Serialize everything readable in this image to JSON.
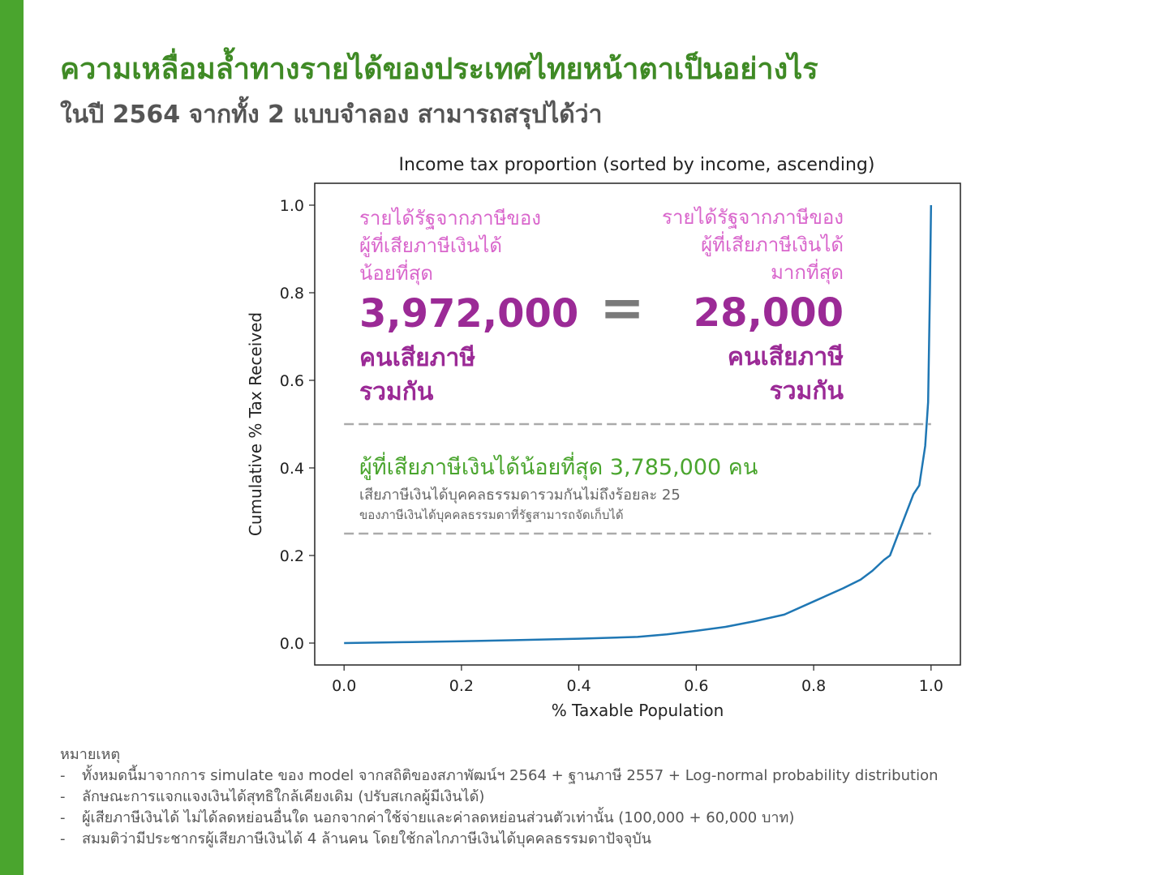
{
  "header": {
    "title": "ความเหลื่อมล้ำทางรายได้ของประเทศไทยหน้าตาเป็นอย่างไร",
    "subtitle": "ในปี 2564 จากทั้ง 2 แบบจำลอง สามารถสรุปได้ว่า"
  },
  "colors": {
    "accent_green": "#4aa52e",
    "title_green": "#3f8a25",
    "purple_label": "#d966cc",
    "purple_value": "#9b2a96",
    "line_blue": "#1f77b4",
    "ref_line_gray": "#aaaaaa"
  },
  "chart_data": {
    "type": "line",
    "title": "Income tax proportion (sorted by income, ascending)",
    "xlabel": "% Taxable Population",
    "ylabel": "Cumulative % Tax Received",
    "xlim": [
      -0.05,
      1.05
    ],
    "ylim": [
      -0.05,
      1.05
    ],
    "xticks": [
      "0.0",
      "0.2",
      "0.4",
      "0.6",
      "0.8",
      "1.0"
    ],
    "yticks": [
      "0.0",
      "0.2",
      "0.4",
      "0.6",
      "0.8",
      "1.0"
    ],
    "grid": false,
    "legend": "none",
    "series": [
      {
        "x": [
          0.0,
          0.1,
          0.2,
          0.3,
          0.4,
          0.5,
          0.55,
          0.6,
          0.65,
          0.7,
          0.75,
          0.8,
          0.85,
          0.88,
          0.9,
          0.92,
          0.93,
          0.95,
          0.97,
          0.98,
          0.99,
          0.995,
          0.998,
          1.0
        ],
        "y": [
          0.0,
          0.002,
          0.004,
          0.007,
          0.01,
          0.014,
          0.02,
          0.028,
          0.037,
          0.05,
          0.065,
          0.095,
          0.125,
          0.145,
          0.165,
          0.19,
          0.2,
          0.27,
          0.34,
          0.36,
          0.45,
          0.55,
          0.8,
          1.0
        ]
      }
    ],
    "reference_lines": [
      {
        "y": 0.5,
        "xmin": 0.0,
        "xmax": 1.0,
        "style": "dashed"
      },
      {
        "y": 0.25,
        "xmin": 0.0,
        "xmax": 1.0,
        "style": "dashed"
      }
    ]
  },
  "overlay": {
    "left": {
      "label_lines": [
        "รายได้รัฐจากภาษีของ",
        "ผู้ที่เสียภาษีเงินได้",
        "น้อยที่สุด"
      ],
      "value": "3,972,000",
      "unit_lines": [
        "คนเสียภาษี",
        "รวมกัน"
      ]
    },
    "equals": "=",
    "right": {
      "label_lines": [
        "รายได้รัฐจากภาษีของ",
        "ผู้ที่เสียภาษีเงินได้",
        "มากที่สุด"
      ],
      "value": "28,000",
      "unit_lines": [
        "คนเสียภาษี",
        "รวมกัน"
      ]
    },
    "lower": {
      "headline": "ผู้ที่เสียภาษีเงินได้น้อยที่สุด 3,785,000 คน",
      "line1": "เสียภาษีเงินได้บุคคลธรรมดารวมกันไม่ถึงร้อยละ 25",
      "line2": "ของภาษีเงินได้บุคคลธรรมดาที่รัฐสามารถจัดเก็บได้"
    }
  },
  "notes": {
    "heading": "หมายเหตุ",
    "bullet": "-",
    "items": [
      "ทั้งหมดนี้มาจากการ simulate ของ model จากสถิติของสภาพัฒน์ฯ 2564 + ฐานภาษี 2557 + Log-normal probability distribution",
      "ลักษณะการแจกแจงเงินได้สุทธิใกล้เคียงเดิม (ปรับสเกลผู้มีเงินได้)",
      "ผู้เสียภาษีเงินได้ ไม่ได้ลดหย่อนอื่นใด นอกจากค่าใช้จ่ายและค่าลดหย่อนส่วนตัวเท่านั้น (100,000 + 60,000 บาท)",
      "สมมติว่ามีประชากรผู้เสียภาษีเงินได้ 4 ล้านคน โดยใช้กลไกภาษีเงินได้บุคคลธรรมดาปัจจุบัน"
    ]
  }
}
